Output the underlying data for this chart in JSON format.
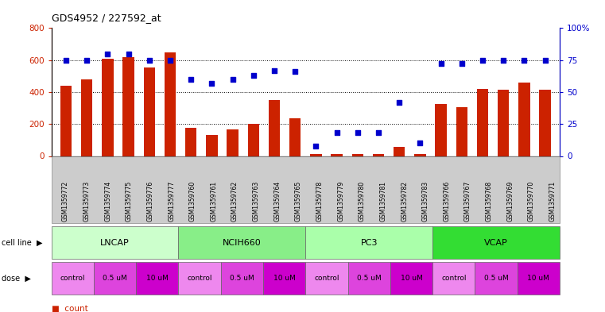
{
  "title": "GDS4952 / 227592_at",
  "samples": [
    "GSM1359772",
    "GSM1359773",
    "GSM1359774",
    "GSM1359775",
    "GSM1359776",
    "GSM1359777",
    "GSM1359760",
    "GSM1359761",
    "GSM1359762",
    "GSM1359763",
    "GSM1359764",
    "GSM1359765",
    "GSM1359778",
    "GSM1359779",
    "GSM1359780",
    "GSM1359781",
    "GSM1359782",
    "GSM1359783",
    "GSM1359766",
    "GSM1359767",
    "GSM1359768",
    "GSM1359769",
    "GSM1359770",
    "GSM1359771"
  ],
  "bar_values": [
    440,
    480,
    610,
    620,
    555,
    650,
    175,
    130,
    165,
    200,
    350,
    235,
    10,
    10,
    10,
    10,
    55,
    10,
    325,
    305,
    420,
    415,
    460,
    415
  ],
  "dot_values": [
    75,
    75,
    80,
    80,
    75,
    75,
    60,
    57,
    60,
    63,
    67,
    66,
    8,
    18,
    18,
    18,
    42,
    10,
    72,
    72,
    75,
    75,
    75,
    75
  ],
  "bar_color": "#cc2200",
  "dot_color": "#0000cc",
  "ylim_left": [
    0,
    800
  ],
  "ylim_right": [
    0,
    100
  ],
  "yticks_left": [
    0,
    200,
    400,
    600,
    800
  ],
  "yticks_right": [
    0,
    25,
    50,
    75,
    100
  ],
  "cell_lines": [
    {
      "label": "LNCAP",
      "start": 0,
      "end": 6,
      "color": "#ccffcc"
    },
    {
      "label": "NCIH660",
      "start": 6,
      "end": 12,
      "color": "#88ee88"
    },
    {
      "label": "PC3",
      "start": 12,
      "end": 18,
      "color": "#aaffaa"
    },
    {
      "label": "VCAP",
      "start": 18,
      "end": 24,
      "color": "#33dd33"
    }
  ],
  "dose_groups": [
    {
      "label": "control",
      "start": 0,
      "end": 2,
      "color": "#ee88ee"
    },
    {
      "label": "0.5 uM",
      "start": 2,
      "end": 4,
      "color": "#dd44dd"
    },
    {
      "label": "10 uM",
      "start": 4,
      "end": 6,
      "color": "#cc00cc"
    },
    {
      "label": "control",
      "start": 6,
      "end": 8,
      "color": "#ee88ee"
    },
    {
      "label": "0.5 uM",
      "start": 8,
      "end": 10,
      "color": "#dd44dd"
    },
    {
      "label": "10 uM",
      "start": 10,
      "end": 12,
      "color": "#cc00cc"
    },
    {
      "label": "control",
      "start": 12,
      "end": 14,
      "color": "#ee88ee"
    },
    {
      "label": "0.5 uM",
      "start": 14,
      "end": 16,
      "color": "#dd44dd"
    },
    {
      "label": "10 uM",
      "start": 16,
      "end": 18,
      "color": "#cc00cc"
    },
    {
      "label": "control",
      "start": 18,
      "end": 20,
      "color": "#ee88ee"
    },
    {
      "label": "0.5 uM",
      "start": 20,
      "end": 22,
      "color": "#dd44dd"
    },
    {
      "label": "10 uM",
      "start": 22,
      "end": 24,
      "color": "#cc00cc"
    }
  ],
  "legend_count_color": "#cc2200",
  "legend_dot_color": "#0000cc",
  "background_color": "#ffffff",
  "xtick_bg_color": "#cccccc",
  "cell_line_label_color": "#000000",
  "dose_label_color": "#000000"
}
